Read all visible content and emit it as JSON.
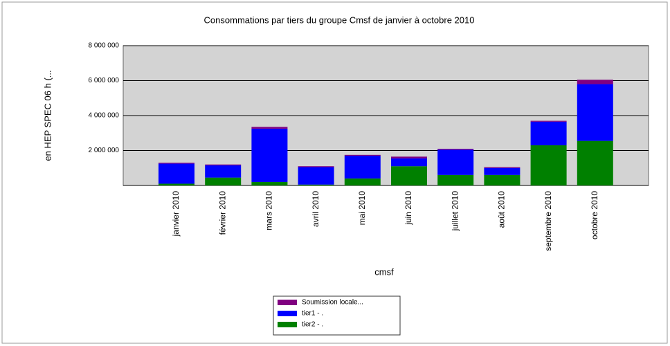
{
  "chart_data": {
    "type": "stacked_bar",
    "title": "Consommations par tiers du groupe Cmsf de janvier à octobre 2010",
    "y_label": "en HEP SPEC 06 h (...",
    "x_label": "cmsf",
    "categories": [
      "janvier 2010",
      "février 2010",
      "mars 2010",
      "avril 2010",
      "mai 2010",
      "juin 2010",
      "juillet 2010",
      "août 2010",
      "septembre 2010",
      "octobre 2010"
    ],
    "series": [
      {
        "name": "tier2 - .",
        "color": "#008000",
        "values": [
          100000,
          450000,
          200000,
          50000,
          400000,
          1100000,
          600000,
          600000,
          2300000,
          2550000
        ]
      },
      {
        "name": "tier1 - .",
        "color": "#0000ff",
        "values": [
          1150000,
          700000,
          3050000,
          1000000,
          1300000,
          450000,
          1450000,
          400000,
          1350000,
          3250000
        ]
      },
      {
        "name": "Soumission  locale...",
        "color": "#800080",
        "values": [
          50000,
          50000,
          100000,
          50000,
          50000,
          100000,
          50000,
          50000,
          50000,
          250000
        ]
      }
    ],
    "ylim": [
      0,
      8000000
    ],
    "yticks": [
      {
        "value": 0,
        "label": ""
      },
      {
        "value": 2000000,
        "label": "2 000 000"
      },
      {
        "value": 4000000,
        "label": "4 000 000"
      },
      {
        "value": 6000000,
        "label": "6 000 000"
      },
      {
        "value": 8000000,
        "label": "8 000 000"
      }
    ],
    "grid": true
  }
}
